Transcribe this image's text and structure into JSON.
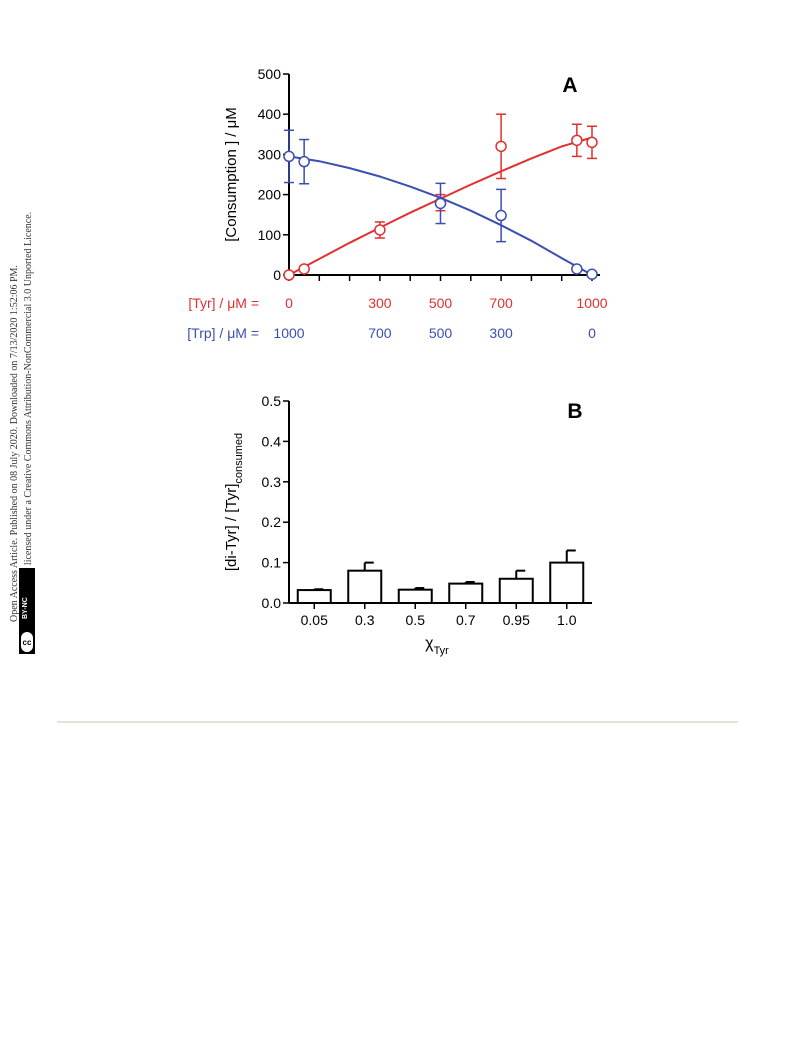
{
  "side_notice": {
    "line1": "Open Access Article. Published on 08 July 2020. Downloaded on 7/13/2020 1:52:06 PM.",
    "line2": "This article is licensed under a Creative Commons Attribution-NonCommercial 3.0 Unported Licence.",
    "badge": "BY-NC",
    "badge_symbol": "cc"
  },
  "colors": {
    "tyr": "#e03030",
    "trp": "#3a4fb0",
    "axis": "#000000"
  },
  "chart_data": [
    {
      "type": "scatter",
      "panel_label": "A",
      "ylabel": "[Consumption ] / μM",
      "ylim": [
        0,
        500
      ],
      "yticks": [
        0,
        100,
        200,
        300,
        400,
        500
      ],
      "xlim": [
        0,
        1000
      ],
      "row_labels": {
        "tyr": "[Tyr] / μM =",
        "trp": "[Trp] / μM ="
      },
      "tyr_ticks": [
        "0",
        "300",
        "500",
        "700",
        "1000"
      ],
      "trp_ticks": [
        "1000",
        "700",
        "500",
        "300",
        "0"
      ],
      "tick_positions": [
        0,
        300,
        500,
        700,
        1000
      ],
      "series": [
        {
          "key": "tyr",
          "x": [
            0,
            50,
            300,
            500,
            700,
            950,
            1000
          ],
          "y": [
            0,
            15,
            112,
            180,
            320,
            335,
            330
          ],
          "err": [
            0,
            0,
            20,
            20,
            80,
            40,
            40
          ],
          "fit_x": [
            0,
            100,
            200,
            300,
            400,
            500,
            600,
            700,
            800,
            900,
            1000
          ],
          "fit_y": [
            0,
            40,
            80,
            118,
            155,
            190,
            225,
            258,
            290,
            320,
            342
          ]
        },
        {
          "key": "trp",
          "x": [
            0,
            50,
            500,
            700,
            950,
            1000
          ],
          "y": [
            295,
            282,
            178,
            148,
            15,
            2
          ],
          "err": [
            65,
            55,
            50,
            65,
            0,
            0
          ],
          "fit_x": [
            0,
            100,
            200,
            300,
            400,
            500,
            600,
            700,
            800,
            900,
            1000
          ],
          "fit_y": [
            295,
            283,
            266,
            245,
            220,
            192,
            160,
            124,
            85,
            42,
            0
          ]
        }
      ]
    },
    {
      "type": "bar",
      "panel_label": "B",
      "ylabel": "[di-Tyr] / [Tyr]",
      "ylabel_sub": "consumed",
      "xlabel": "χ",
      "xlabel_sub": "Tyr",
      "ylim": [
        0,
        0.5
      ],
      "yticks": [
        "0.0",
        "0.1",
        "0.2",
        "0.3",
        "0.4",
        "0.5"
      ],
      "categories": [
        "0.05",
        "0.3",
        "0.5",
        "0.7",
        "0.95",
        "1.0"
      ],
      "values": [
        0.032,
        0.08,
        0.033,
        0.048,
        0.06,
        0.1
      ],
      "errors": [
        0.002,
        0.02,
        0.004,
        0.004,
        0.02,
        0.03
      ]
    }
  ]
}
